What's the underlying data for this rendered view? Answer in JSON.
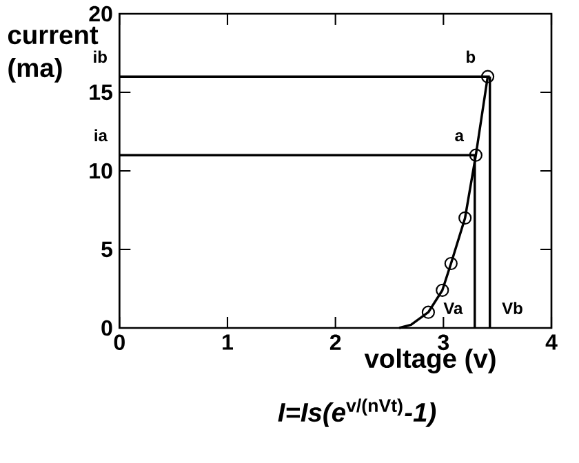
{
  "chart_data": {
    "type": "line",
    "xlabel": "voltage (v)",
    "ylabel": "current (ma)",
    "xlim": [
      0,
      4
    ],
    "ylim": [
      0,
      20
    ],
    "xticks": [
      0,
      1,
      2,
      3,
      4
    ],
    "yticks": [
      0,
      5,
      10,
      15,
      20
    ],
    "grid": false,
    "series": [
      {
        "color": "#000000",
        "marker": "none",
        "x": [
          2.59,
          2.7,
          2.86,
          2.99,
          3.07,
          3.2,
          3.3,
          3.41
        ],
        "values": [
          0,
          0.2,
          1,
          2.4,
          4.1,
          7,
          11,
          16
        ]
      },
      {
        "type": "scatter",
        "color": "#000000",
        "marker": "circle",
        "x": [
          2.86,
          2.99,
          3.07,
          3.2,
          3.3,
          3.41
        ],
        "values": [
          1,
          2.4,
          4.1,
          7,
          11,
          16
        ]
      },
      {
        "type": "line",
        "color": "#000000",
        "marker": "none",
        "x": [
          0,
          3.3
        ],
        "values": [
          11,
          11
        ]
      },
      {
        "type": "line",
        "color": "#000000",
        "marker": "none",
        "x": [
          3.29,
          3.29
        ],
        "values": [
          0,
          11
        ]
      },
      {
        "type": "line",
        "color": "#000000",
        "marker": "none",
        "x": [
          0,
          3.43
        ],
        "values": [
          16,
          16
        ]
      },
      {
        "type": "line",
        "color": "#000000",
        "marker": "none",
        "x": [
          3.43,
          3.43
        ],
        "values": [
          0,
          16
        ]
      }
    ],
    "annotations": [
      {
        "text": "ia",
        "x": 0,
        "y": 11
      },
      {
        "text": "ib",
        "x": 0,
        "y": 16
      },
      {
        "text": "a",
        "x": 3.3,
        "y": 11
      },
      {
        "text": "b",
        "x": 3.41,
        "y": 16
      },
      {
        "text": "Va",
        "x": 3.29,
        "y": 0
      },
      {
        "text": "Vb",
        "x": 3.43,
        "y": 0
      },
      "*I=Is(e*$^{v/(nVt)}$*-1)*"
    ]
  }
}
